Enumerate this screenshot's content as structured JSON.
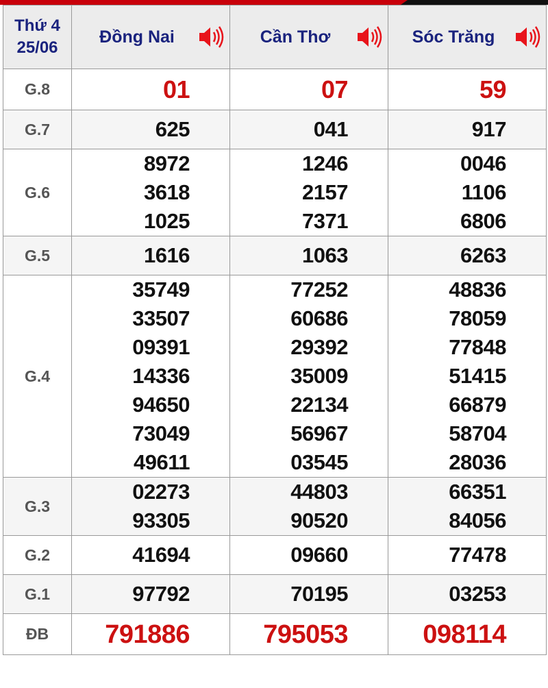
{
  "header": {
    "day": "Thứ 4",
    "date": "25/06",
    "provinces": [
      {
        "name": "Đồng Nai",
        "icon": "speaker-icon"
      },
      {
        "name": "Cần Thơ",
        "icon": "speaker-icon"
      },
      {
        "name": "Sóc Trăng",
        "icon": "speaker-icon"
      }
    ]
  },
  "colors": {
    "accent_red": "#cc1111",
    "header_text": "#1a237e",
    "top_bar": "#c8000a"
  },
  "prizes": [
    {
      "label": "G.8",
      "values": [
        [
          "01"
        ],
        [
          "07"
        ],
        [
          "59"
        ]
      ]
    },
    {
      "label": "G.7",
      "values": [
        [
          "625"
        ],
        [
          "041"
        ],
        [
          "917"
        ]
      ]
    },
    {
      "label": "G.6",
      "values": [
        [
          "8972",
          "3618",
          "1025"
        ],
        [
          "1246",
          "2157",
          "7371"
        ],
        [
          "0046",
          "1106",
          "6806"
        ]
      ]
    },
    {
      "label": "G.5",
      "values": [
        [
          "1616"
        ],
        [
          "1063"
        ],
        [
          "6263"
        ]
      ]
    },
    {
      "label": "G.4",
      "values": [
        [
          "35749",
          "33507",
          "09391",
          "14336",
          "94650",
          "73049",
          "49611"
        ],
        [
          "77252",
          "60686",
          "29392",
          "35009",
          "22134",
          "56967",
          "03545"
        ],
        [
          "48836",
          "78059",
          "77848",
          "51415",
          "66879",
          "58704",
          "28036"
        ]
      ]
    },
    {
      "label": "G.3",
      "values": [
        [
          "02273",
          "93305"
        ],
        [
          "44803",
          "90520"
        ],
        [
          "66351",
          "84056"
        ]
      ]
    },
    {
      "label": "G.2",
      "values": [
        [
          "41694"
        ],
        [
          "09660"
        ],
        [
          "77478"
        ]
      ]
    },
    {
      "label": "G.1",
      "values": [
        [
          "97792"
        ],
        [
          "70195"
        ],
        [
          "03253"
        ]
      ]
    },
    {
      "label": "ĐB",
      "values": [
        [
          "791886"
        ],
        [
          "795053"
        ],
        [
          "098114"
        ]
      ]
    }
  ]
}
